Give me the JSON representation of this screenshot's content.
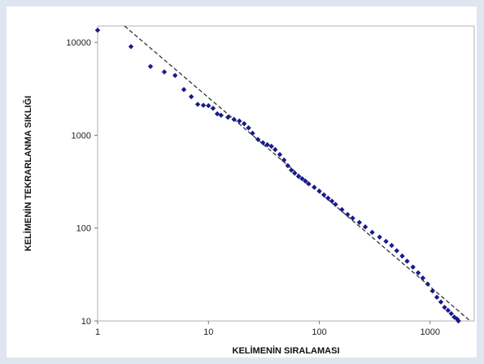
{
  "chart_data": {
    "type": "scatter",
    "title": "",
    "xlabel": "KELİMENİN SIRALAMASI",
    "ylabel": "KELİMENİN TEKRARLANMA SIKLIĞI",
    "x_scale": "log",
    "y_scale": "log",
    "xlim": [
      1,
      2500
    ],
    "ylim": [
      10,
      15000
    ],
    "x_ticks": [
      1,
      10,
      100,
      1000
    ],
    "y_ticks": [
      10,
      100,
      1000,
      10000
    ],
    "x_tick_labels": [
      "1",
      "10",
      "100",
      "1000"
    ],
    "y_tick_labels": [
      "10",
      "100",
      "1000",
      "10000"
    ],
    "grid": false,
    "legend": "none",
    "series": [
      {
        "marker": "diamond",
        "color": "#1a1a8c",
        "points": [
          [
            1,
            13500
          ],
          [
            2,
            9000
          ],
          [
            3,
            5500
          ],
          [
            4,
            4800
          ],
          [
            5,
            4400
          ],
          [
            6,
            3100
          ],
          [
            7,
            2600
          ],
          [
            8,
            2150
          ],
          [
            9,
            2100
          ],
          [
            10,
            2080
          ],
          [
            11,
            1950
          ],
          [
            12,
            1700
          ],
          [
            13,
            1640
          ],
          [
            15,
            1560
          ],
          [
            17,
            1480
          ],
          [
            19,
            1420
          ],
          [
            21,
            1330
          ],
          [
            23,
            1200
          ],
          [
            25,
            1050
          ],
          [
            28,
            900
          ],
          [
            31,
            830
          ],
          [
            34,
            790
          ],
          [
            37,
            760
          ],
          [
            40,
            700
          ],
          [
            44,
            620
          ],
          [
            48,
            540
          ],
          [
            52,
            470
          ],
          [
            56,
            420
          ],
          [
            60,
            390
          ],
          [
            65,
            360
          ],
          [
            70,
            340
          ],
          [
            75,
            320
          ],
          [
            80,
            300
          ],
          [
            90,
            275
          ],
          [
            100,
            250
          ],
          [
            110,
            228
          ],
          [
            120,
            210
          ],
          [
            130,
            195
          ],
          [
            140,
            180
          ],
          [
            160,
            158
          ],
          [
            180,
            140
          ],
          [
            200,
            128
          ],
          [
            230,
            115
          ],
          [
            260,
            103
          ],
          [
            300,
            90
          ],
          [
            350,
            80
          ],
          [
            400,
            72
          ],
          [
            450,
            65
          ],
          [
            500,
            57
          ],
          [
            560,
            50
          ],
          [
            620,
            44
          ],
          [
            700,
            38
          ],
          [
            780,
            33
          ],
          [
            860,
            29
          ],
          [
            950,
            25
          ],
          [
            1050,
            21
          ],
          [
            1150,
            18
          ],
          [
            1250,
            16
          ],
          [
            1350,
            14
          ],
          [
            1450,
            13
          ],
          [
            1550,
            12
          ],
          [
            1650,
            11
          ],
          [
            1750,
            10.5
          ],
          [
            1800,
            10
          ]
        ]
      },
      {
        "style": "dashed",
        "color": "#333333",
        "points": [
          [
            1.75,
            15000
          ],
          [
            2300,
            10
          ]
        ]
      }
    ]
  }
}
